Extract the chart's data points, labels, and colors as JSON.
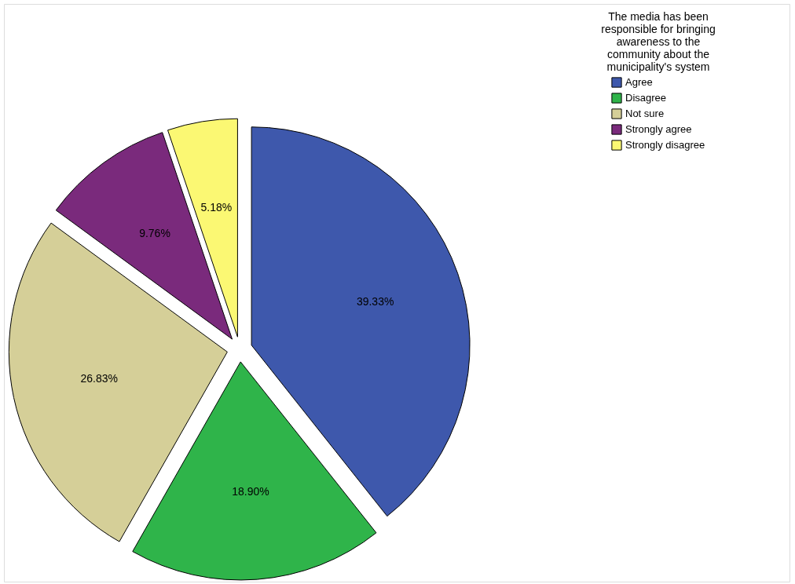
{
  "chart_data": {
    "type": "pie",
    "legend_title": "The media has been responsible for bringing awareness to the community about the municipality's system",
    "categories": [
      "Agree",
      "Disagree",
      "Not sure",
      "Strongly agree",
      "Strongly disagree"
    ],
    "values": [
      39.33,
      18.9,
      26.83,
      9.76,
      5.18
    ],
    "value_labels": [
      "39.33%",
      "18.90%",
      "26.83%",
      "9.76%",
      "5.18%"
    ],
    "colors": [
      "#3e58ac",
      "#2fb44a",
      "#d5cf98",
      "#7a2a7c",
      "#fbf873"
    ],
    "legend": "top right"
  }
}
